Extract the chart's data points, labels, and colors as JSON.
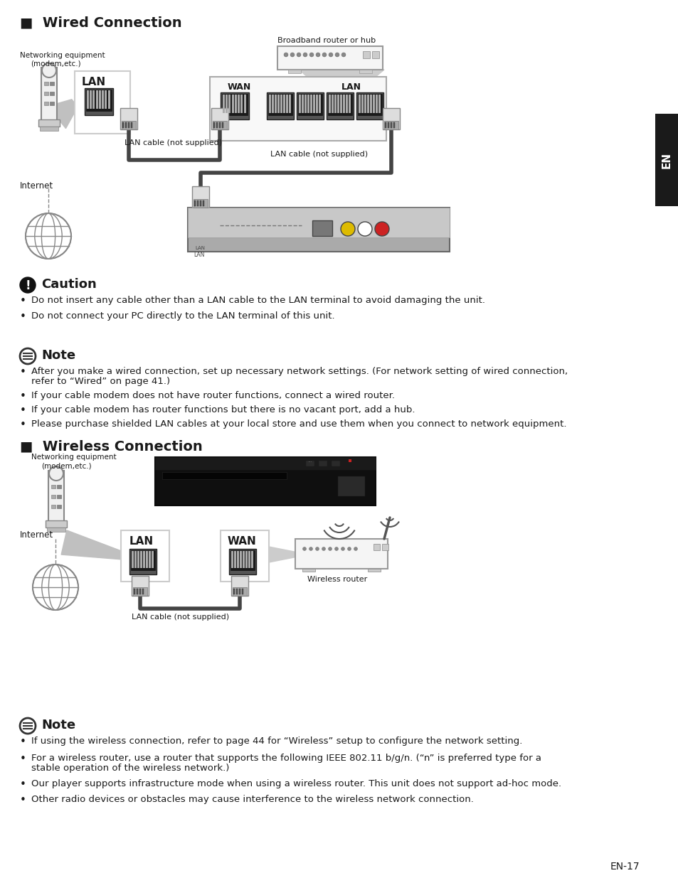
{
  "bg_color": "#ffffff",
  "text_color": "#1a1a1a",
  "gray1": "#cccccc",
  "gray2": "#888888",
  "gray3": "#555555",
  "gray4": "#333333",
  "gray5": "#e8e8e8",
  "gray6": "#f0f0f0",
  "gray7": "#aaaaaa",
  "cable_color": "#444444",
  "device_dark": "#111111",
  "device_mid": "#888888",
  "device_light": "#b8b8b8",
  "sidebar_color": "#1a1a1a",
  "section1_title": "■  Wired Connection",
  "section2_title": "■  Wireless Connection",
  "caution_title": "Caution",
  "note_title": "Note",
  "broadband_label": "Broadband router or hub",
  "net_equip_label1": "Networking equipment",
  "net_equip_label2": "(modem,etc.)",
  "internet_label": "Internet",
  "wan_label": "WAN",
  "lan_label": "LAN",
  "lan_cable_label1": "LAN cable (not supplied)",
  "lan_cable_label2": "LAN cable (not supplied)",
  "wireless_router_label": "Wireless router",
  "lan_cable_label3": "LAN cable (not supplied)",
  "caution_b1": "Do not insert any cable other than a LAN cable to the LAN terminal to avoid damaging the unit.",
  "caution_b2": "Do not connect your PC directly to the LAN terminal of this unit.",
  "note1_b1a": "After you make a wired connection, set up necessary network settings. (For network setting of wired connection,",
  "note1_b1b": "refer to “Wired” on page 41.)",
  "note1_b2": "If your cable modem does not have router functions, connect a wired router.",
  "note1_b3": "If your cable modem has router functions but there is no vacant port, add a hub.",
  "note1_b4": "Please purchase shielded LAN cables at your local store and use them when you connect to network equipment.",
  "note2_b1": "If using the wireless connection, refer to page 44 for “Wireless” setup to configure the network setting.",
  "note2_b2a": "For a wireless router, use a router that supports the following IEEE 802.11 b/g/n. (“n” is preferred type for a",
  "note2_b2b": "stable operation of the wireless network.)",
  "note2_b3": "Our player supports infrastructure mode when using a wireless router. This unit does not support ad-hoc mode.",
  "note2_b4": "Other radio devices or obstacles may cause interference to the wireless network connection.",
  "page_num": "EN-17"
}
